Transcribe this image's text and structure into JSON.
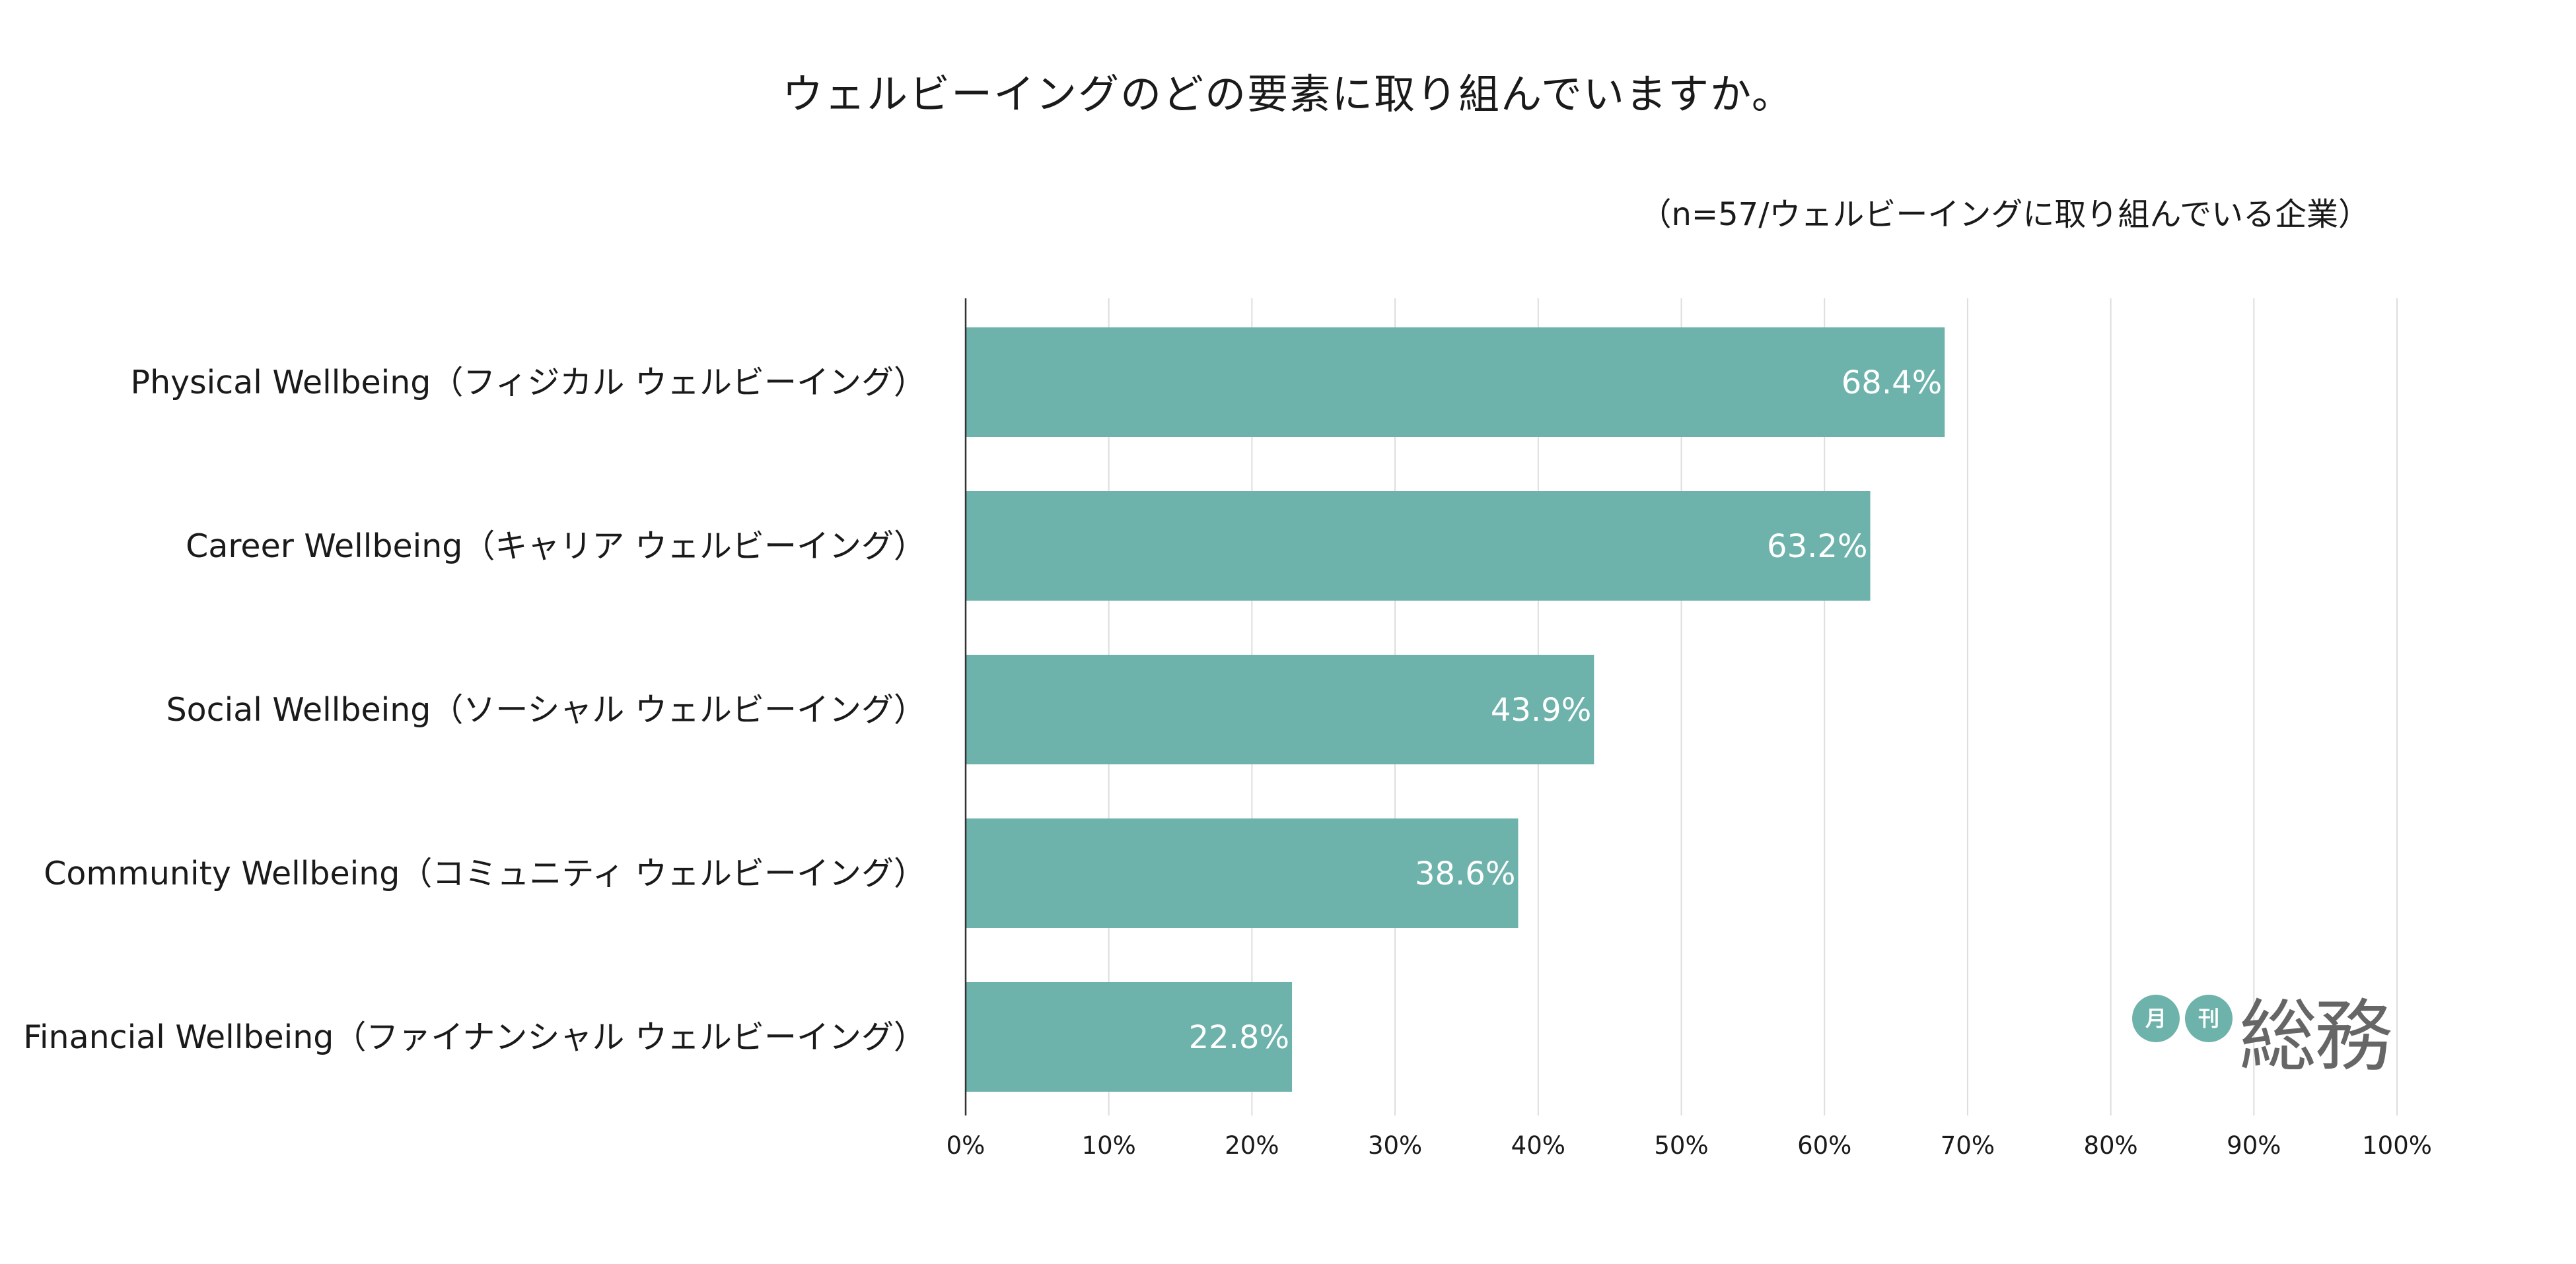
{
  "chart_data": {
    "type": "bar",
    "orientation": "horizontal",
    "title": "ウェルビーイングのどの要素に取り組んでいますか。",
    "note": "（n=57/ウェルビーイングに取り組んでいる企業）",
    "categories": [
      "Physical Wellbeing（フィジカル ウェルビーイング）",
      "Career Wellbeing（キャリア ウェルビーイング）",
      "Social Wellbeing（ソーシャル ウェルビーイング）",
      "Community Wellbeing（コミュニティ ウェルビーイング）",
      "Financial Wellbeing（ファイナンシャル ウェルビーイング）"
    ],
    "values": [
      68.4,
      63.2,
      43.9,
      38.6,
      22.8
    ],
    "value_labels": [
      "68.4%",
      "63.2%",
      "43.9%",
      "38.6%",
      "22.8%"
    ],
    "xlim": [
      0,
      100
    ],
    "x_ticks": [
      0,
      10,
      20,
      30,
      40,
      50,
      60,
      70,
      80,
      90,
      100
    ],
    "x_tick_labels": [
      "0%",
      "10%",
      "20%",
      "30%",
      "40%",
      "50%",
      "60%",
      "70%",
      "80%",
      "90%",
      "100%"
    ],
    "grid": "vertical",
    "legend": "none"
  },
  "colors": {
    "bar": "#6db3ab",
    "grid": "#dddddd",
    "axis": "#333333",
    "logo_accent": "#6db3ab",
    "logo_text": "#666666"
  },
  "logo": {
    "circle_1": "月",
    "circle_2": "刊",
    "main": "総務"
  }
}
